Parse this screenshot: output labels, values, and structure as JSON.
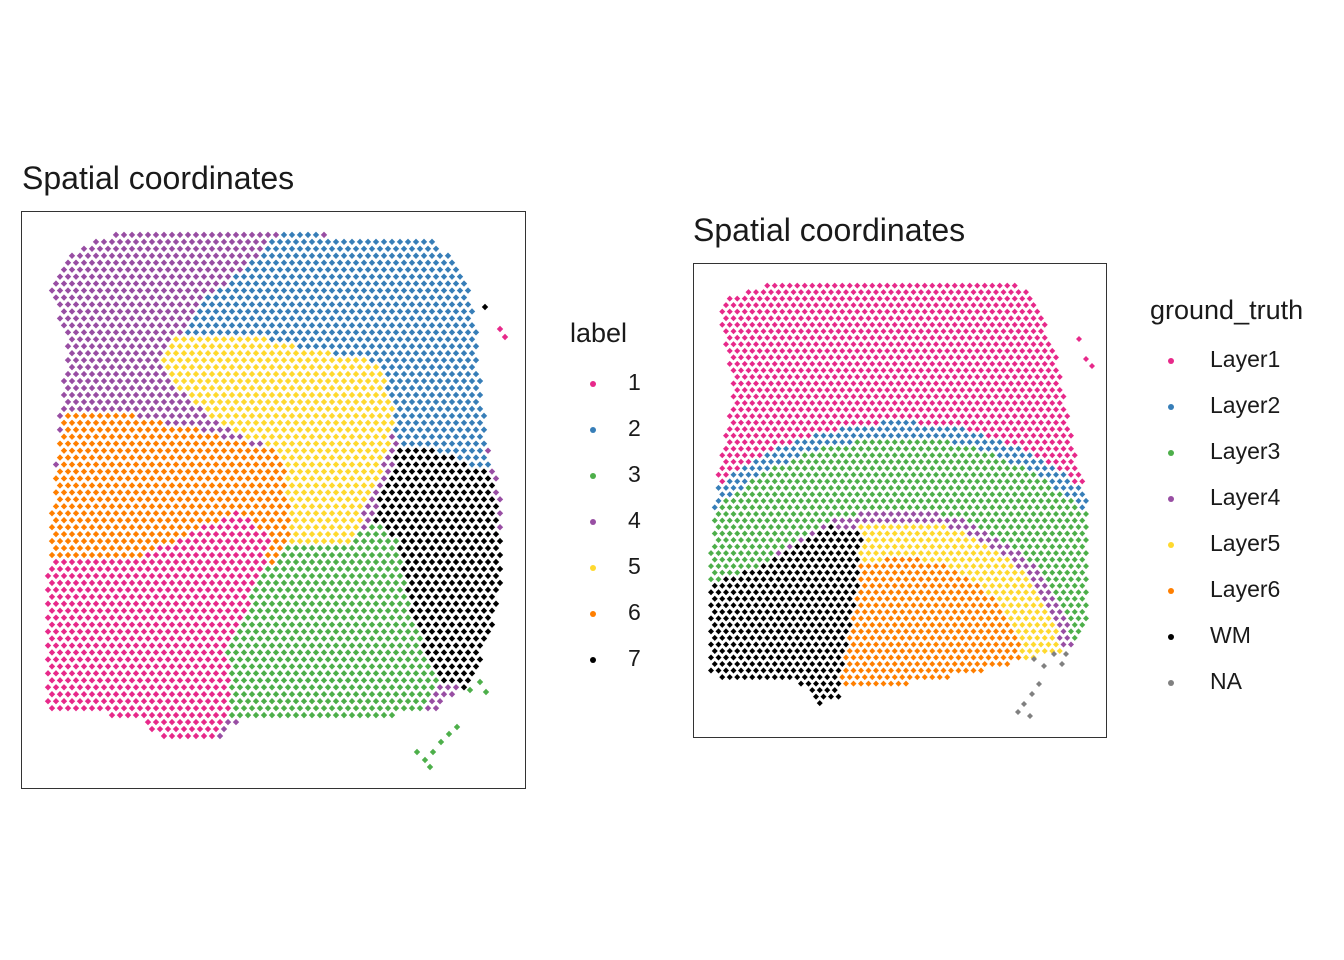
{
  "charts": [
    {
      "title": "Spatial coordinates",
      "legend": {
        "title": "label",
        "items": [
          {
            "label": "1",
            "color": "#E7298A"
          },
          {
            "label": "2",
            "color": "#377EB8"
          },
          {
            "label": "3",
            "color": "#4DAF4A"
          },
          {
            "label": "4",
            "color": "#984EA3"
          },
          {
            "label": "5",
            "color": "#FFD92F"
          },
          {
            "label": "6",
            "color": "#FF7F00"
          },
          {
            "label": "7",
            "color": "#000000"
          }
        ]
      }
    },
    {
      "title": "Spatial coordinates",
      "legend": {
        "title": "ground_truth",
        "items": [
          {
            "label": "Layer1",
            "color": "#E7298A"
          },
          {
            "label": "Layer2",
            "color": "#377EB8"
          },
          {
            "label": "Layer3",
            "color": "#4DAF4A"
          },
          {
            "label": "Layer4",
            "color": "#984EA3"
          },
          {
            "label": "Layer5",
            "color": "#FFD92F"
          },
          {
            "label": "Layer6",
            "color": "#FF7F00"
          },
          {
            "label": "WM",
            "color": "#000000"
          },
          {
            "label": "NA",
            "color": "#808080"
          }
        ]
      }
    }
  ],
  "chart_data": [
    {
      "type": "scatter",
      "title": "Spatial coordinates",
      "xlabel": "",
      "ylabel": "",
      "axes_visible": false,
      "grid": false,
      "legend_placement": "right",
      "legend_title": "label",
      "series": [
        {
          "name": "1",
          "color": "#E7298A",
          "region": "lower-left"
        },
        {
          "name": "2",
          "color": "#377EB8",
          "region": "upper-right"
        },
        {
          "name": "3",
          "color": "#4DAF4A",
          "region": "lower-center"
        },
        {
          "name": "4",
          "color": "#984EA3",
          "region": "upper-left"
        },
        {
          "name": "5",
          "color": "#FFD92F",
          "region": "center"
        },
        {
          "name": "6",
          "color": "#FF7F00",
          "region": "middle-left"
        },
        {
          "name": "7",
          "color": "#000000",
          "region": "right"
        }
      ]
    },
    {
      "type": "scatter",
      "title": "Spatial coordinates",
      "xlabel": "",
      "ylabel": "",
      "axes_visible": false,
      "grid": false,
      "legend_placement": "right",
      "legend_title": "ground_truth",
      "series": [
        {
          "name": "Layer1",
          "color": "#E7298A",
          "region": "top band"
        },
        {
          "name": "Layer2",
          "color": "#377EB8",
          "region": "thin outer arc"
        },
        {
          "name": "Layer3",
          "color": "#4DAF4A",
          "region": "wide arc"
        },
        {
          "name": "Layer4",
          "color": "#984EA3",
          "region": "thin arc"
        },
        {
          "name": "Layer5",
          "color": "#FFD92F",
          "region": "arc"
        },
        {
          "name": "Layer6",
          "color": "#FF7F00",
          "region": "inner arc"
        },
        {
          "name": "WM",
          "color": "#000000",
          "region": "lower-left core"
        },
        {
          "name": "NA",
          "color": "#808080",
          "region": "bottom-right specks"
        }
      ]
    }
  ]
}
